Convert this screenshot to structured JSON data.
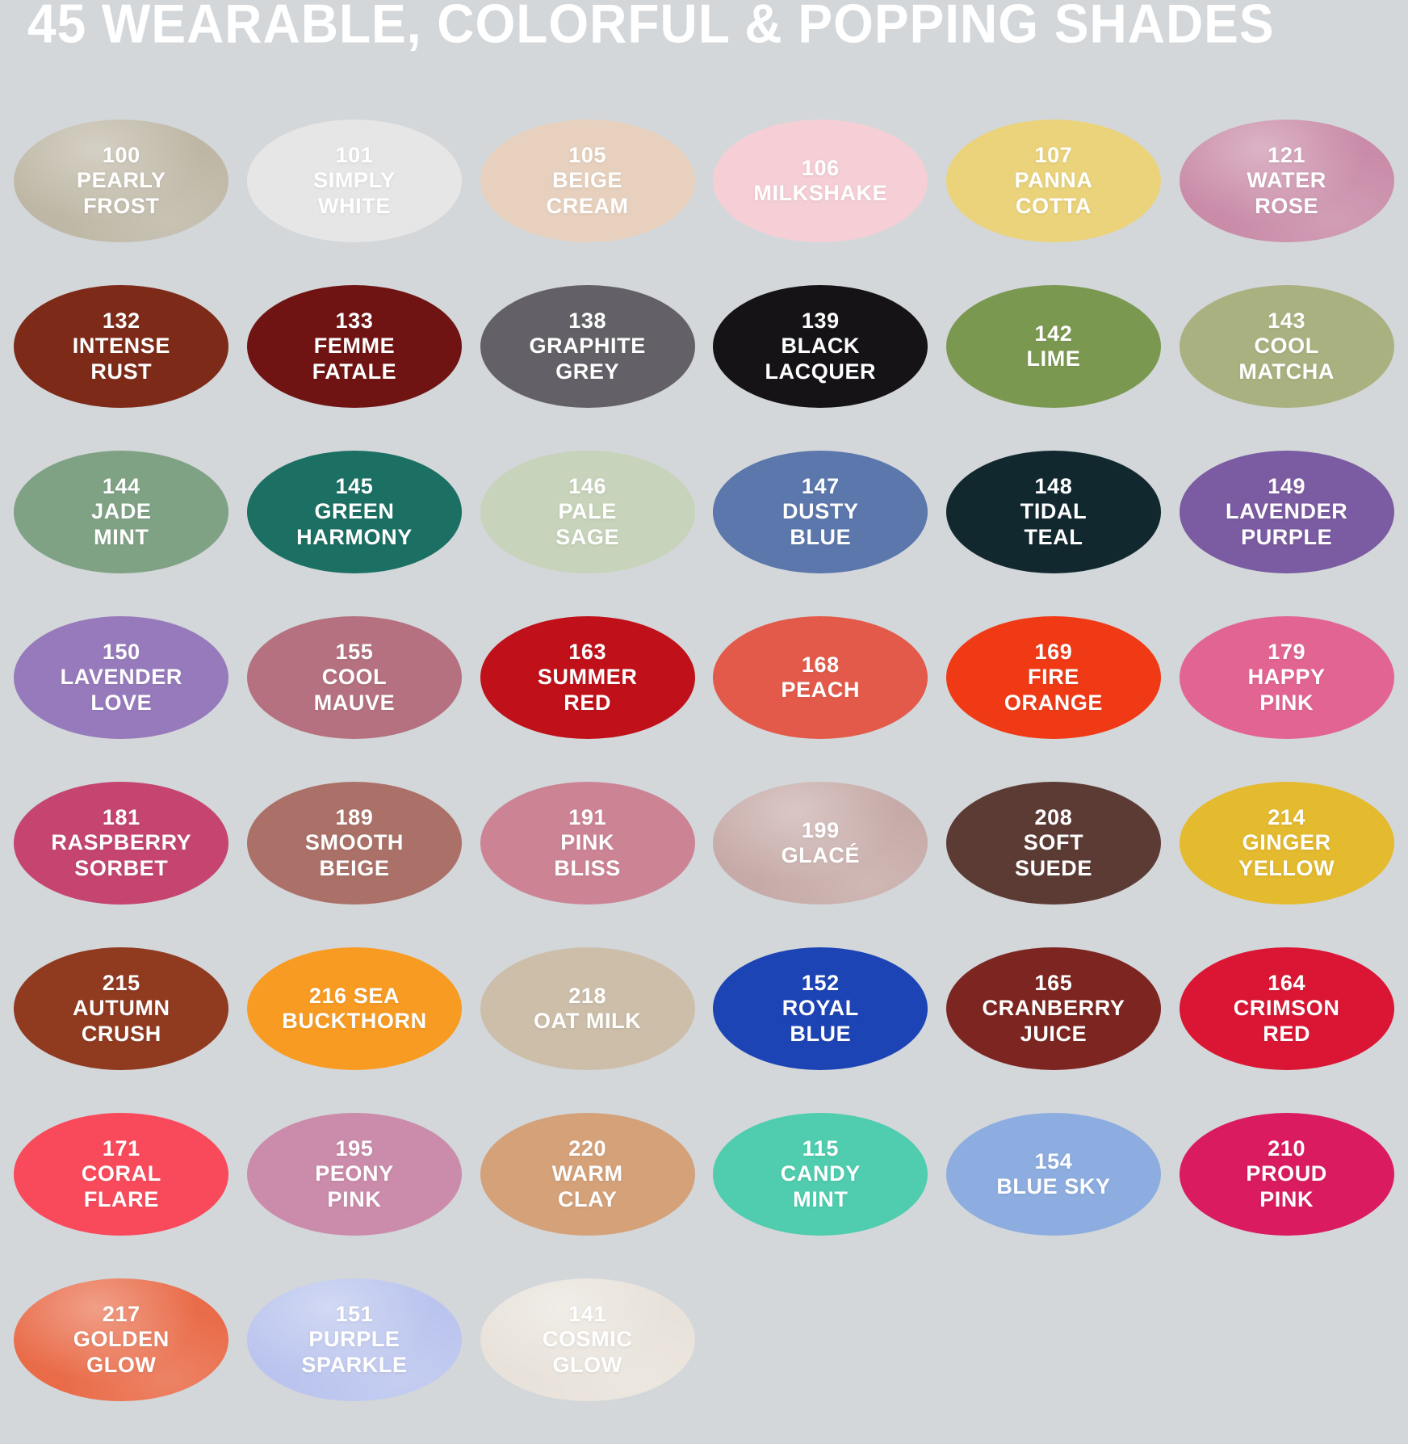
{
  "title": "45 WEARABLE, COLORFUL & POPPING SHADES",
  "colors": {
    "background": "#d3d7da",
    "label_text": "#ffffff"
  },
  "swatches": [
    {
      "number": "100",
      "name": "PEARLY FROST",
      "lines": [
        "100",
        "PEARLY",
        "FROST"
      ],
      "color": "#beb7a5",
      "shimmer": true
    },
    {
      "number": "101",
      "name": "SIMPLY WHITE",
      "lines": [
        "101",
        "SIMPLY",
        "WHITE"
      ],
      "color": "#e7e6e7",
      "shimmer": false
    },
    {
      "number": "105",
      "name": "BEIGE CREAM",
      "lines": [
        "105",
        "BEIGE",
        "CREAM"
      ],
      "color": "#e7d1be",
      "shimmer": false
    },
    {
      "number": "106",
      "name": "MILKSHAKE",
      "lines": [
        "106",
        "MILKSHAKE"
      ],
      "color": "#f5cfd5",
      "shimmer": false
    },
    {
      "number": "107",
      "name": "PANNA COTTA",
      "lines": [
        "107",
        "PANNA",
        "COTTA"
      ],
      "color": "#ead37b",
      "shimmer": false
    },
    {
      "number": "121",
      "name": "WATER ROSE",
      "lines": [
        "121",
        "WATER",
        "ROSE"
      ],
      "color": "#c98ba8",
      "shimmer": true
    },
    {
      "number": "132",
      "name": "INTENSE RUST",
      "lines": [
        "132",
        "INTENSE",
        "RUST"
      ],
      "color": "#7d2b18",
      "shimmer": false
    },
    {
      "number": "133",
      "name": "FEMME FATALE",
      "lines": [
        "133",
        "FEMME",
        "FATALE"
      ],
      "color": "#701313",
      "shimmer": false
    },
    {
      "number": "138",
      "name": "GRAPHITE GREY",
      "lines": [
        "138",
        "GRAPHITE",
        "GREY"
      ],
      "color": "#636167",
      "shimmer": false
    },
    {
      "number": "139",
      "name": "BLACK LACQUER",
      "lines": [
        "139",
        "BLACK",
        "LACQUER"
      ],
      "color": "#151316",
      "shimmer": false
    },
    {
      "number": "142",
      "name": "LIME",
      "lines": [
        "142",
        "LIME"
      ],
      "color": "#7b9850",
      "shimmer": false
    },
    {
      "number": "143",
      "name": "COOL MATCHA",
      "lines": [
        "143",
        "COOL",
        "MATCHA"
      ],
      "color": "#aab180",
      "shimmer": false
    },
    {
      "number": "144",
      "name": "JADE MINT",
      "lines": [
        "144",
        "JADE",
        "MINT"
      ],
      "color": "#80a284",
      "shimmer": false
    },
    {
      "number": "145",
      "name": "GREEN HARMONY",
      "lines": [
        "145",
        "GREEN",
        "HARMONY"
      ],
      "color": "#1b6f63",
      "shimmer": false
    },
    {
      "number": "146",
      "name": "PALE SAGE",
      "lines": [
        "146",
        "PALE",
        "SAGE"
      ],
      "color": "#c7d3ba",
      "shimmer": false
    },
    {
      "number": "147",
      "name": "DUSTY BLUE",
      "lines": [
        "147",
        "DUSTY",
        "BLUE"
      ],
      "color": "#5b77ac",
      "shimmer": false
    },
    {
      "number": "148",
      "name": "TIDAL TEAL",
      "lines": [
        "148",
        "TIDAL",
        "TEAL"
      ],
      "color": "#12282f",
      "shimmer": false
    },
    {
      "number": "149",
      "name": "LAVENDER PURPLE",
      "lines": [
        "149",
        "LAVENDER",
        "PURPLE"
      ],
      "color": "#7b5ba1",
      "shimmer": false
    },
    {
      "number": "150",
      "name": "LAVENDER LOVE",
      "lines": [
        "150",
        "LAVENDER",
        "LOVE"
      ],
      "color": "#977abc",
      "shimmer": false
    },
    {
      "number": "155",
      "name": "COOL MAUVE",
      "lines": [
        "155",
        "COOL",
        "MAUVE"
      ],
      "color": "#b5717f",
      "shimmer": false
    },
    {
      "number": "163",
      "name": "SUMMER RED",
      "lines": [
        "163",
        "SUMMER",
        "RED"
      ],
      "color": "#c01019",
      "shimmer": false
    },
    {
      "number": "168",
      "name": "PEACH",
      "lines": [
        "168",
        "PEACH"
      ],
      "color": "#e35a4a",
      "shimmer": false
    },
    {
      "number": "169",
      "name": "FIRE ORANGE",
      "lines": [
        "169",
        "FIRE",
        "ORANGE"
      ],
      "color": "#f03a16",
      "shimmer": false
    },
    {
      "number": "179",
      "name": "HAPPY PINK",
      "lines": [
        "179",
        "HAPPY",
        "PINK"
      ],
      "color": "#e26492",
      "shimmer": false
    },
    {
      "number": "181",
      "name": "RASPBERRY SORBET",
      "lines": [
        "181",
        "RASPBERRY",
        "SORBET"
      ],
      "color": "#c54570",
      "shimmer": false
    },
    {
      "number": "189",
      "name": "SMOOTH BEIGE",
      "lines": [
        "189",
        "SMOOTH",
        "BEIGE"
      ],
      "color": "#ab7168",
      "shimmer": false
    },
    {
      "number": "191",
      "name": "PINK BLISS",
      "lines": [
        "191",
        "PINK",
        "BLISS"
      ],
      "color": "#cc8495",
      "shimmer": false
    },
    {
      "number": "199",
      "name": "GLACÉ",
      "lines": [
        "199",
        "GLACÉ"
      ],
      "color": "#c6aaa7",
      "shimmer": true
    },
    {
      "number": "208",
      "name": "SOFT SUEDE",
      "lines": [
        "208",
        "SOFT",
        "SUEDE"
      ],
      "color": "#5d3b35",
      "shimmer": false
    },
    {
      "number": "214",
      "name": "GINGER YELLOW",
      "lines": [
        "214",
        "GINGER",
        "YELLOW"
      ],
      "color": "#e4ba2e",
      "shimmer": false
    },
    {
      "number": "215",
      "name": "AUTUMN CRUSH",
      "lines": [
        "215",
        "AUTUMN",
        "CRUSH"
      ],
      "color": "#903a20",
      "shimmer": false
    },
    {
      "number": "216",
      "name": "SEA BUCKTHORN",
      "lines": [
        "216 SEA",
        "BUCKTHORN"
      ],
      "color": "#f89b23",
      "shimmer": false
    },
    {
      "number": "218",
      "name": "OAT MILK",
      "lines": [
        "218",
        "OAT MILK"
      ],
      "color": "#ccbea9",
      "shimmer": false
    },
    {
      "number": "152",
      "name": "ROYAL BLUE",
      "lines": [
        "152",
        "ROYAL",
        "BLUE"
      ],
      "color": "#1d44b5",
      "shimmer": false
    },
    {
      "number": "165",
      "name": "CRANBERRY JUICE",
      "lines": [
        "165",
        "CRANBERRY",
        "JUICE"
      ],
      "color": "#7d2520",
      "shimmer": false
    },
    {
      "number": "164",
      "name": "CRIMSON RED",
      "lines": [
        "164",
        "CRIMSON",
        "RED"
      ],
      "color": "#da1634",
      "shimmer": false
    },
    {
      "number": "171",
      "name": "CORAL FLARE",
      "lines": [
        "171",
        "CORAL",
        "FLARE"
      ],
      "color": "#f94a5c",
      "shimmer": false
    },
    {
      "number": "195",
      "name": "PEONY PINK",
      "lines": [
        "195",
        "PEONY",
        "PINK"
      ],
      "color": "#cb8baa",
      "shimmer": false
    },
    {
      "number": "220",
      "name": "WARM CLAY",
      "lines": [
        "220",
        "WARM",
        "CLAY"
      ],
      "color": "#d4a179",
      "shimmer": false
    },
    {
      "number": "115",
      "name": "CANDY MINT",
      "lines": [
        "115",
        "CANDY",
        "MINT"
      ],
      "color": "#4fcdae",
      "shimmer": false
    },
    {
      "number": "154",
      "name": "BLUE SKY",
      "lines": [
        "154",
        "BLUE SKY"
      ],
      "color": "#8dade0",
      "shimmer": false
    },
    {
      "number": "210",
      "name": "PROUD PINK",
      "lines": [
        "210",
        "PROUD",
        "PINK"
      ],
      "color": "#da1b60",
      "shimmer": false
    },
    {
      "number": "217",
      "name": "GOLDEN GLOW",
      "lines": [
        "217",
        "GOLDEN",
        "GLOW"
      ],
      "color": "#e96b48",
      "shimmer": true
    },
    {
      "number": "151",
      "name": "PURPLE SPARKLE",
      "lines": [
        "151",
        "PURPLE",
        "SPARKLE"
      ],
      "color": "#bac4ee",
      "shimmer": true
    },
    {
      "number": "141",
      "name": "COSMIC GLOW",
      "lines": [
        "141",
        "COSMIC",
        "GLOW"
      ],
      "color": "#e8e2da",
      "shimmer": true
    }
  ]
}
